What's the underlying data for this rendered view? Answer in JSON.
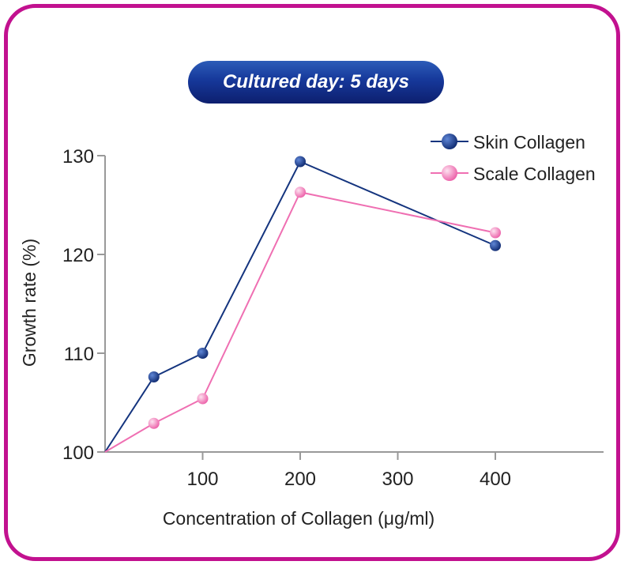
{
  "badge": {
    "text": "Cultured day: 5 days"
  },
  "colors": {
    "frame": "#c2118f",
    "skin": "#14347e",
    "scale": "#ef6fb2",
    "axis": "#999999"
  },
  "chart_data": {
    "type": "line",
    "title": "",
    "xlabel": "Concentration of Collagen (μg/ml)",
    "ylabel": "Growth rate (%)",
    "xlim": [
      0,
      500
    ],
    "ylim": [
      100,
      130
    ],
    "x_ticks": [
      100,
      200,
      300,
      400
    ],
    "y_ticks": [
      100,
      110,
      120,
      130
    ],
    "grid": false,
    "legend_position": "top-right",
    "series": [
      {
        "name": "Skin Collagen",
        "color": "#14347e",
        "points": [
          [
            0,
            100
          ],
          [
            50,
            107.6
          ],
          [
            100,
            110
          ],
          [
            200,
            129.4
          ],
          [
            400,
            120.9
          ]
        ]
      },
      {
        "name": "Scale Collagen",
        "color": "#ef6fb2",
        "points": [
          [
            0,
            100
          ],
          [
            50,
            102.9
          ],
          [
            100,
            105.4
          ],
          [
            200,
            126.3
          ],
          [
            400,
            122.2
          ]
        ]
      }
    ]
  }
}
